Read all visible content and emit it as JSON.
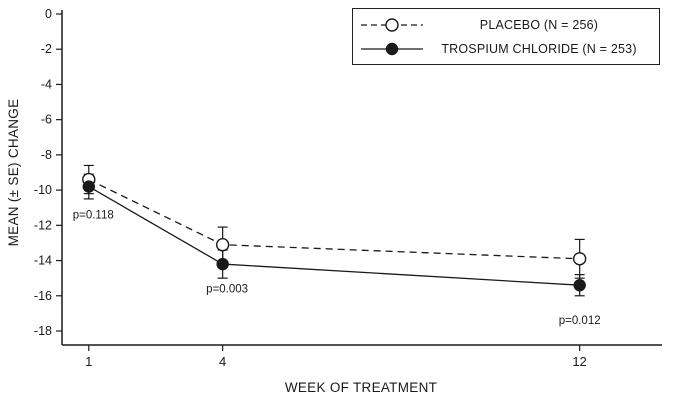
{
  "chart_data": {
    "type": "line",
    "title": "",
    "xlabel": "WEEK OF TREATMENT",
    "ylabel": "MEAN (± SE) CHANGE",
    "categories": [
      1,
      4,
      12
    ],
    "xlim": [
      0.4,
      13.8
    ],
    "ylim": [
      0,
      -18
    ],
    "yticks": [
      0,
      -2,
      -4,
      -6,
      -8,
      -10,
      -12,
      -14,
      -16,
      -18
    ],
    "grid": false,
    "legend_position": "top-right",
    "series": [
      {
        "name": "PLACEBO (N = 256)",
        "marker": "open-circle",
        "line_style": "dashed",
        "values": [
          -9.4,
          -13.1,
          -13.9
        ],
        "se": [
          0.8,
          1.0,
          1.1
        ]
      },
      {
        "name": "TROSPIUM CHLORIDE (N = 253)",
        "marker": "filled-circle",
        "line_style": "solid",
        "values": [
          -9.8,
          -14.2,
          -15.4
        ],
        "se": [
          0.7,
          0.8,
          0.6
        ]
      }
    ],
    "annotations": [
      {
        "text": "p=0.118",
        "x": 1.1,
        "y": -11.6
      },
      {
        "text": "p=0.003",
        "x": 4.1,
        "y": -15.8
      },
      {
        "text": "p=0.012",
        "x": 12.0,
        "y": -17.6
      }
    ],
    "colors": {
      "stroke": "#1a1a1a",
      "background": "#ffffff"
    }
  }
}
